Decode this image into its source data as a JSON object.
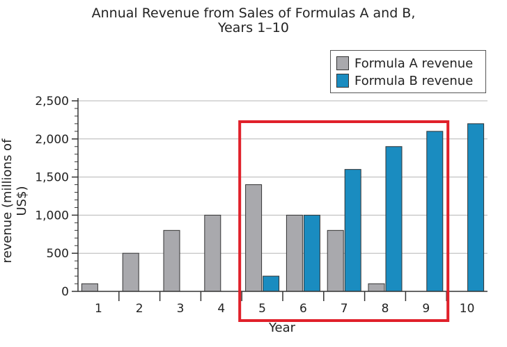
{
  "chart_data": {
    "type": "bar",
    "title": "Annual Revenue from Sales of Formulas A and B,",
    "subtitle": "Years 1–10",
    "xlabel": "Year",
    "ylabel": "revenue (millions of US$)",
    "categories": [
      "1",
      "2",
      "3",
      "4",
      "5",
      "6",
      "7",
      "8",
      "9",
      "10"
    ],
    "series": [
      {
        "name": "Formula A revenue",
        "color": "#a9a9ad",
        "values": [
          100,
          500,
          800,
          1000,
          1400,
          1000,
          800,
          100,
          0,
          0
        ]
      },
      {
        "name": "Formula B revenue",
        "color": "#1a8cc0",
        "values": [
          0,
          0,
          0,
          0,
          200,
          1000,
          1600,
          1900,
          2100,
          2200
        ]
      }
    ],
    "ylim": [
      0,
      2500
    ],
    "yticks": [
      "0",
      "500",
      "1,000",
      "1,500",
      "2,000",
      "2,500"
    ],
    "grid": true,
    "legend_position": "top-right",
    "highlight": {
      "from_category": "5",
      "to_category": "9",
      "color": "#e0202a"
    }
  }
}
